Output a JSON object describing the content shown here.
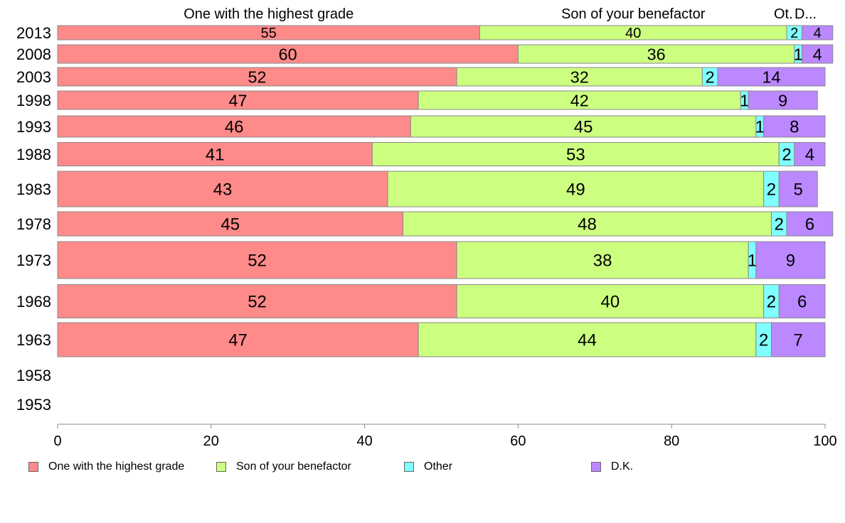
{
  "chart_data": {
    "type": "bar",
    "orientation": "horizontal",
    "stacked": true,
    "categories": [
      "2013",
      "2008",
      "2003",
      "1998",
      "1993",
      "1988",
      "1983",
      "1978",
      "1973",
      "1968",
      "1963",
      "1958",
      "1953"
    ],
    "series": [
      {
        "name": "One with the highest grade",
        "short": "One with the highest grade",
        "color": "#ff8a8a",
        "values": [
          55,
          60,
          52,
          47,
          46,
          41,
          43,
          45,
          52,
          52,
          47,
          null,
          null
        ]
      },
      {
        "name": "Son of your benefactor",
        "short": "Son of your benefactor",
        "color": "#ccff80",
        "values": [
          40,
          36,
          32,
          42,
          45,
          53,
          49,
          48,
          38,
          40,
          44,
          null,
          null
        ]
      },
      {
        "name": "Other",
        "short": "Ot.",
        "color": "#80ffff",
        "values": [
          2,
          1,
          2,
          1,
          1,
          2,
          2,
          2,
          1,
          2,
          2,
          null,
          null
        ]
      },
      {
        "name": "D.K.",
        "short": "D...",
        "color": "#bb88ff",
        "values": [
          4,
          4,
          14,
          9,
          8,
          4,
          5,
          6,
          9,
          6,
          7,
          null,
          null
        ]
      }
    ],
    "xlim": [
      0,
      100
    ],
    "xticks": [
      "0",
      "20",
      "40",
      "60",
      "80",
      "100"
    ],
    "legend_position": "bottom"
  }
}
